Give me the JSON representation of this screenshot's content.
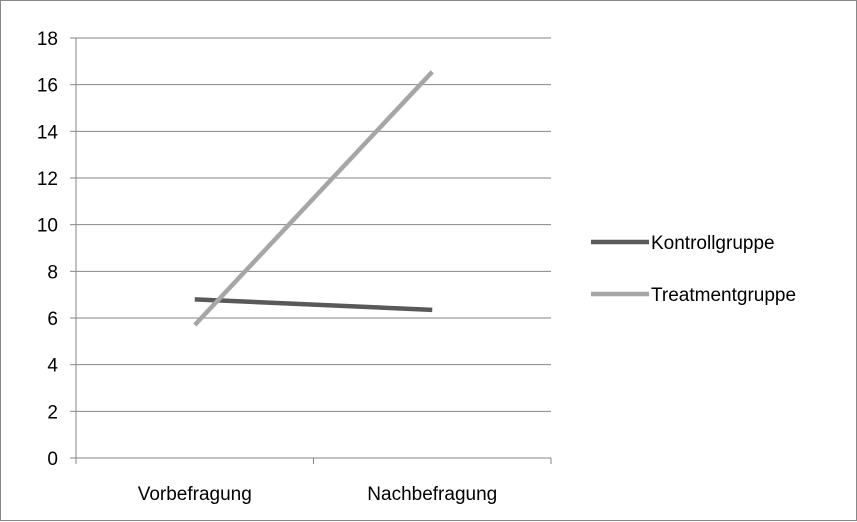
{
  "chart_data": {
    "type": "line",
    "categories": [
      "Vorbefragung",
      "Nachbefragung"
    ],
    "series": [
      {
        "name": "Kontrollgruppe",
        "values": [
          6.8,
          6.35
        ],
        "color": "#595959"
      },
      {
        "name": "Treatmentgruppe",
        "values": [
          5.7,
          16.55
        ],
        "color": "#a6a6a6"
      }
    ],
    "ylim": [
      0,
      18
    ],
    "yticks": [
      0,
      2,
      4,
      6,
      8,
      10,
      12,
      14,
      16,
      18
    ],
    "grid": true,
    "legend_position": "right",
    "gridline_color": "#868686"
  }
}
